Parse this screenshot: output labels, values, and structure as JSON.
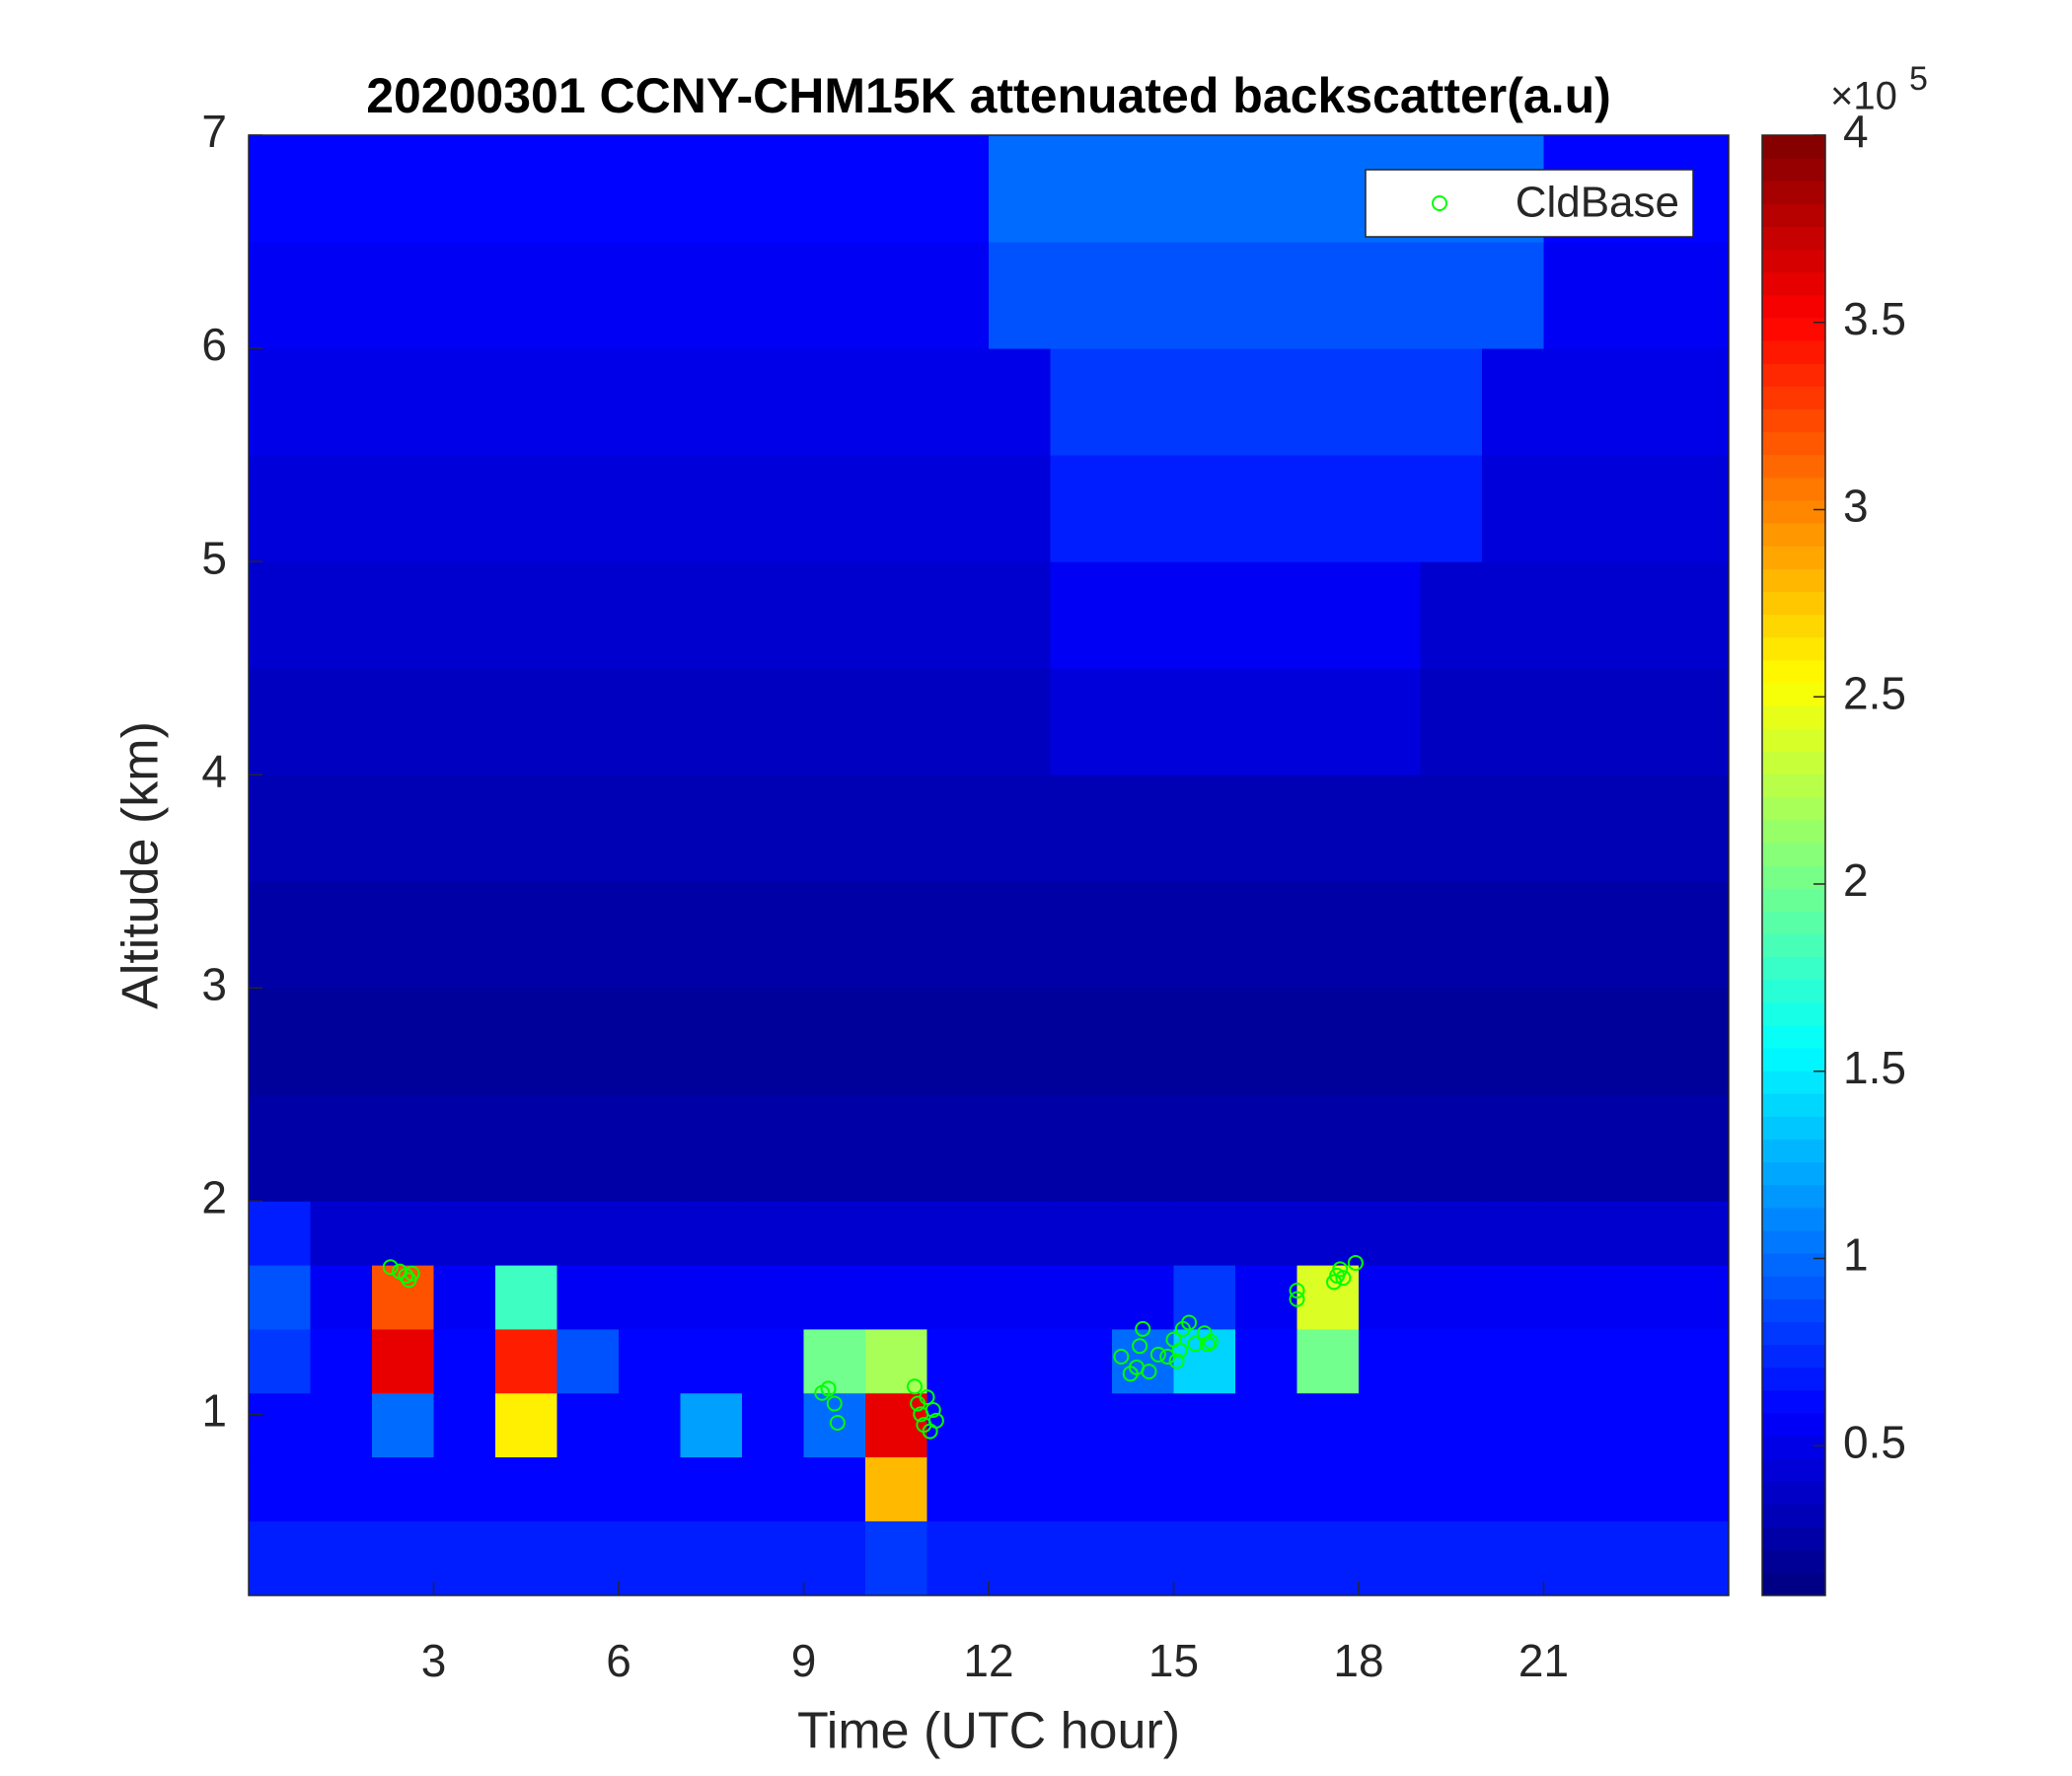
{
  "chart_data": {
    "type": "heatmap",
    "title": "20200301 CCNY-CHM15K attenuated backscatter(a.u)",
    "xlabel": "Time (UTC hour)",
    "ylabel": "Altitude (km)",
    "xlim": [
      0,
      24
    ],
    "ylim": [
      0.15,
      7
    ],
    "xticks": [
      3,
      6,
      9,
      12,
      15,
      18,
      21
    ],
    "yticks": [
      1,
      2,
      3,
      4,
      5,
      6,
      7
    ],
    "x_edges": [
      0,
      1,
      2,
      3,
      4,
      5,
      6,
      7,
      8,
      9,
      10,
      11,
      12,
      13,
      14,
      15,
      16,
      17,
      18,
      19,
      20,
      21,
      22,
      23,
      24
    ],
    "y_edges": [
      0.15,
      0.5,
      0.8,
      1.1,
      1.4,
      1.7,
      2,
      2.5,
      3,
      3.5,
      4,
      4.5,
      5,
      5.5,
      6,
      6.5,
      7
    ],
    "colormap": "jet",
    "colorbar": {
      "clim": [
        0.1,
        4
      ],
      "cticks": [
        0.5,
        1,
        1.5,
        2,
        2.5,
        3,
        3.5,
        4
      ],
      "multiplier": "×10",
      "exponent": "5"
    },
    "z": [
      [
        0.7,
        0.7,
        0.7,
        0.7,
        0.7,
        0.7,
        0.7,
        0.7,
        0.7,
        0.7,
        0.8,
        0.7,
        0.7,
        0.7,
        0.7,
        0.7,
        0.7,
        0.7,
        0.7,
        0.7,
        0.7,
        0.7,
        0.7,
        0.7
      ],
      [
        0.6,
        0.6,
        0.6,
        0.6,
        0.6,
        0.6,
        0.6,
        0.6,
        0.6,
        0.6,
        2.8,
        0.6,
        0.6,
        0.6,
        0.6,
        0.6,
        0.6,
        0.6,
        0.6,
        0.6,
        0.6,
        0.6,
        0.6,
        0.6
      ],
      [
        0.6,
        0.6,
        1.0,
        0.6,
        2.6,
        0.6,
        0.6,
        1.2,
        0.6,
        1.0,
        3.6,
        0.6,
        0.6,
        0.6,
        0.6,
        0.6,
        0.6,
        0.6,
        0.6,
        0.6,
        0.6,
        0.6,
        0.6,
        0.6
      ],
      [
        0.8,
        0.6,
        3.6,
        0.6,
        3.4,
        0.9,
        0.6,
        0.6,
        0.6,
        2.0,
        2.2,
        0.6,
        0.6,
        0.6,
        1.0,
        1.4,
        0.6,
        2.0,
        0.6,
        0.6,
        0.6,
        0.6,
        0.6,
        0.6
      ],
      [
        0.9,
        0.55,
        3.2,
        0.55,
        1.8,
        0.55,
        0.55,
        0.55,
        0.55,
        0.55,
        0.55,
        0.55,
        0.55,
        0.55,
        0.55,
        0.8,
        0.55,
        2.4,
        0.55,
        0.55,
        0.55,
        0.55,
        0.55,
        0.55
      ],
      [
        0.7,
        0.4,
        0.4,
        0.4,
        0.4,
        0.4,
        0.4,
        0.4,
        0.4,
        0.4,
        0.4,
        0.4,
        0.4,
        0.4,
        0.4,
        0.4,
        0.4,
        0.4,
        0.4,
        0.4,
        0.4,
        0.4,
        0.4,
        0.4
      ],
      [
        0.25,
        0.25,
        0.25,
        0.25,
        0.25,
        0.25,
        0.25,
        0.25,
        0.25,
        0.25,
        0.25,
        0.25,
        0.25,
        0.25,
        0.25,
        0.25,
        0.25,
        0.25,
        0.25,
        0.25,
        0.25,
        0.25,
        0.25,
        0.25
      ],
      [
        0.2,
        0.2,
        0.2,
        0.2,
        0.2,
        0.2,
        0.2,
        0.2,
        0.2,
        0.2,
        0.2,
        0.2,
        0.2,
        0.2,
        0.2,
        0.2,
        0.2,
        0.2,
        0.2,
        0.2,
        0.2,
        0.2,
        0.2,
        0.2
      ],
      [
        0.25,
        0.25,
        0.25,
        0.25,
        0.25,
        0.25,
        0.25,
        0.25,
        0.25,
        0.25,
        0.25,
        0.25,
        0.25,
        0.25,
        0.25,
        0.25,
        0.25,
        0.25,
        0.25,
        0.25,
        0.25,
        0.25,
        0.25,
        0.25
      ],
      [
        0.3,
        0.3,
        0.3,
        0.3,
        0.3,
        0.3,
        0.3,
        0.3,
        0.3,
        0.3,
        0.3,
        0.3,
        0.3,
        0.3,
        0.3,
        0.3,
        0.3,
        0.3,
        0.3,
        0.3,
        0.3,
        0.3,
        0.3,
        0.3
      ],
      [
        0.35,
        0.35,
        0.35,
        0.35,
        0.35,
        0.35,
        0.35,
        0.35,
        0.35,
        0.35,
        0.35,
        0.35,
        0.35,
        0.45,
        0.45,
        0.45,
        0.45,
        0.45,
        0.45,
        0.35,
        0.35,
        0.35,
        0.35,
        0.35
      ],
      [
        0.4,
        0.4,
        0.4,
        0.4,
        0.4,
        0.4,
        0.4,
        0.4,
        0.4,
        0.4,
        0.4,
        0.4,
        0.4,
        0.55,
        0.55,
        0.55,
        0.55,
        0.55,
        0.55,
        0.4,
        0.4,
        0.4,
        0.4,
        0.4
      ],
      [
        0.45,
        0.45,
        0.45,
        0.45,
        0.45,
        0.45,
        0.45,
        0.45,
        0.45,
        0.45,
        0.45,
        0.45,
        0.45,
        0.7,
        0.7,
        0.7,
        0.7,
        0.7,
        0.7,
        0.7,
        0.45,
        0.45,
        0.45,
        0.45
      ],
      [
        0.5,
        0.5,
        0.5,
        0.5,
        0.5,
        0.5,
        0.5,
        0.5,
        0.5,
        0.5,
        0.5,
        0.5,
        0.5,
        0.8,
        0.8,
        0.8,
        0.8,
        0.8,
        0.8,
        0.8,
        0.5,
        0.5,
        0.5,
        0.5
      ],
      [
        0.55,
        0.55,
        0.55,
        0.55,
        0.55,
        0.55,
        0.55,
        0.55,
        0.55,
        0.55,
        0.55,
        0.55,
        0.9,
        0.9,
        0.9,
        0.9,
        0.9,
        0.9,
        0.9,
        0.9,
        0.9,
        0.55,
        0.55,
        0.55
      ],
      [
        0.6,
        0.6,
        0.6,
        0.6,
        0.6,
        0.6,
        0.6,
        0.6,
        0.6,
        0.6,
        0.6,
        0.6,
        1.0,
        1.0,
        1.0,
        1.0,
        1.0,
        1.0,
        1.0,
        1.0,
        1.0,
        0.6,
        0.6,
        0.6
      ]
    ],
    "series": [
      {
        "name": "CldBase",
        "color": "#00ff00",
        "x": [
          2.3,
          2.45,
          2.55,
          2.6,
          2.65,
          9.3,
          9.4,
          9.5,
          9.55,
          10.8,
          10.85,
          10.9,
          10.95,
          11.0,
          11.05,
          11.1,
          11.15,
          14.15,
          14.3,
          14.4,
          14.45,
          14.5,
          14.6,
          14.75,
          14.9,
          15.0,
          15.05,
          15.1,
          15.15,
          15.25,
          15.35,
          15.5,
          15.55,
          15.6,
          17.0,
          17.0,
          17.6,
          17.65,
          17.7,
          17.75,
          17.95
        ],
        "values": [
          1.69,
          1.67,
          1.65,
          1.63,
          1.66,
          1.1,
          1.12,
          1.05,
          0.96,
          1.13,
          1.05,
          1.0,
          0.95,
          1.08,
          0.92,
          1.02,
          0.97,
          1.27,
          1.19,
          1.22,
          1.32,
          1.4,
          1.2,
          1.28,
          1.27,
          1.35,
          1.25,
          1.3,
          1.4,
          1.43,
          1.33,
          1.38,
          1.33,
          1.34,
          1.54,
          1.58,
          1.62,
          1.65,
          1.68,
          1.64,
          1.71
        ]
      }
    ],
    "legend": "northeast"
  }
}
